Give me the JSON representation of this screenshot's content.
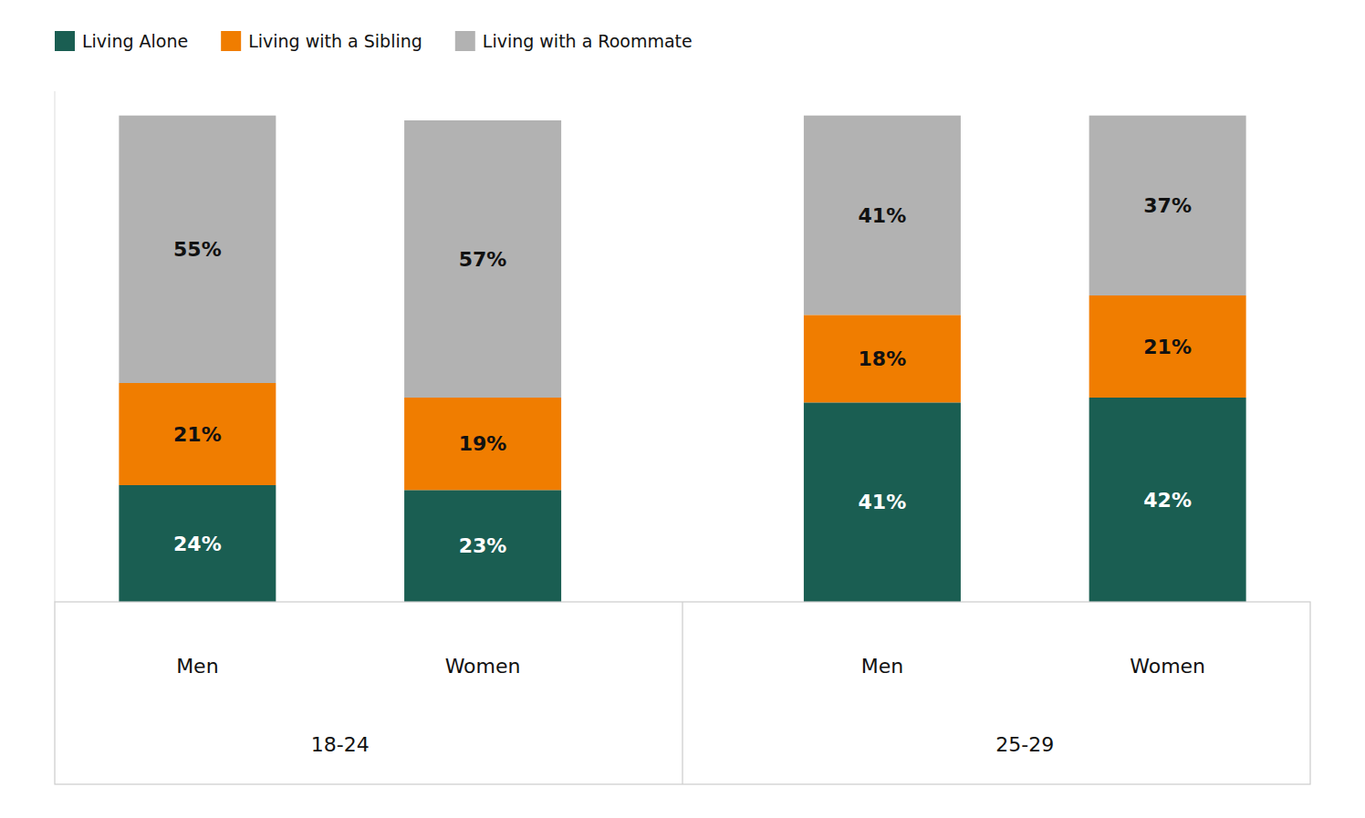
{
  "chart_data": {
    "type": "bar",
    "stacked": true,
    "data_labels": true,
    "tick_labels": "x",
    "legend": "upper left",
    "categories": [
      "Men",
      "Women",
      "Men",
      "Women"
    ],
    "groups": [
      "18-24",
      "25-29"
    ],
    "ylim": [
      0,
      105
    ],
    "series": [
      {
        "name": "Living Alone",
        "color": "#1a5e52",
        "values": [
          24,
          23,
          41,
          42
        ],
        "value_labels": [
          "24%",
          "23%",
          "41%",
          "42%"
        ]
      },
      {
        "name": "Living with a Sibling",
        "color": "#f07d00",
        "values": [
          21,
          19,
          18,
          21
        ],
        "value_labels": [
          "21%",
          "19%",
          "18%",
          "21%"
        ]
      },
      {
        "name": "Living with a Roommate",
        "color": "#b2b2b2",
        "values": [
          55,
          57,
          41,
          37
        ],
        "value_labels": [
          "55%",
          "57%",
          "41%",
          "37%"
        ]
      }
    ]
  }
}
